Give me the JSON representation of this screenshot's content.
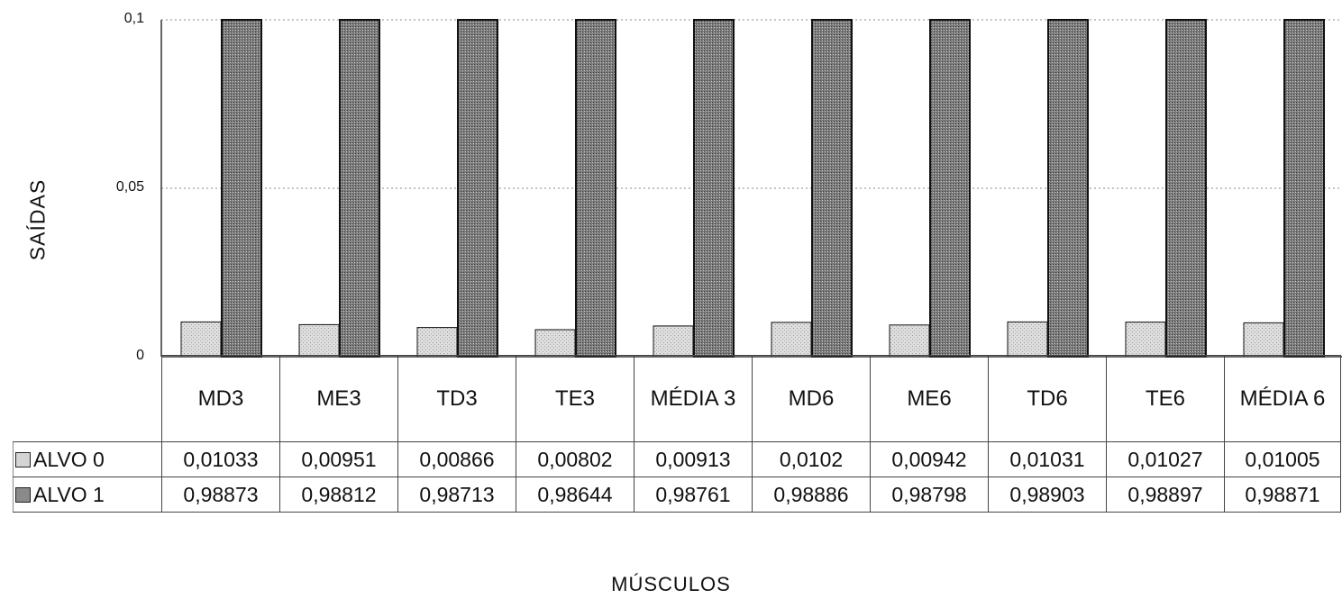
{
  "chart_data": {
    "type": "bar",
    "categories": [
      "MD3",
      "ME3",
      "TD3",
      "TE3",
      "MÉDIA 3",
      "MD6",
      "ME6",
      "TD6",
      "TE6",
      "MÉDIA 6"
    ],
    "series": [
      {
        "name": "ALVO 0",
        "values": [
          0.01033,
          0.00951,
          0.00866,
          0.00802,
          0.00913,
          0.0102,
          0.00942,
          0.01031,
          0.01027,
          0.01005
        ],
        "labels": [
          "0,01033",
          "0,00951",
          "0,00866",
          "0,00802",
          "0,00913",
          "0,0102",
          "0,00942",
          "0,01031",
          "0,01027",
          "0,01005"
        ],
        "color": "#d4d4d4"
      },
      {
        "name": "ALVO 1",
        "values": [
          0.98873,
          0.98812,
          0.98713,
          0.98644,
          0.98761,
          0.98886,
          0.98798,
          0.98903,
          0.98897,
          0.98871
        ],
        "labels": [
          "0,98873",
          "0,98812",
          "0,98713",
          "0,98644",
          "0,98761",
          "0,98886",
          "0,98798",
          "0,98903",
          "0,98897",
          "0,98871"
        ],
        "color": "#8a8a8a"
      }
    ],
    "ylabel": "SAÍDAS",
    "xlabel": "MÚSCULOS",
    "ylim": [
      0,
      0.1
    ],
    "yticks": [
      0,
      0.05,
      0.1
    ],
    "ytick_labels": [
      "0",
      "0,05",
      "0,1"
    ],
    "grid": true,
    "legend": "data-table"
  }
}
